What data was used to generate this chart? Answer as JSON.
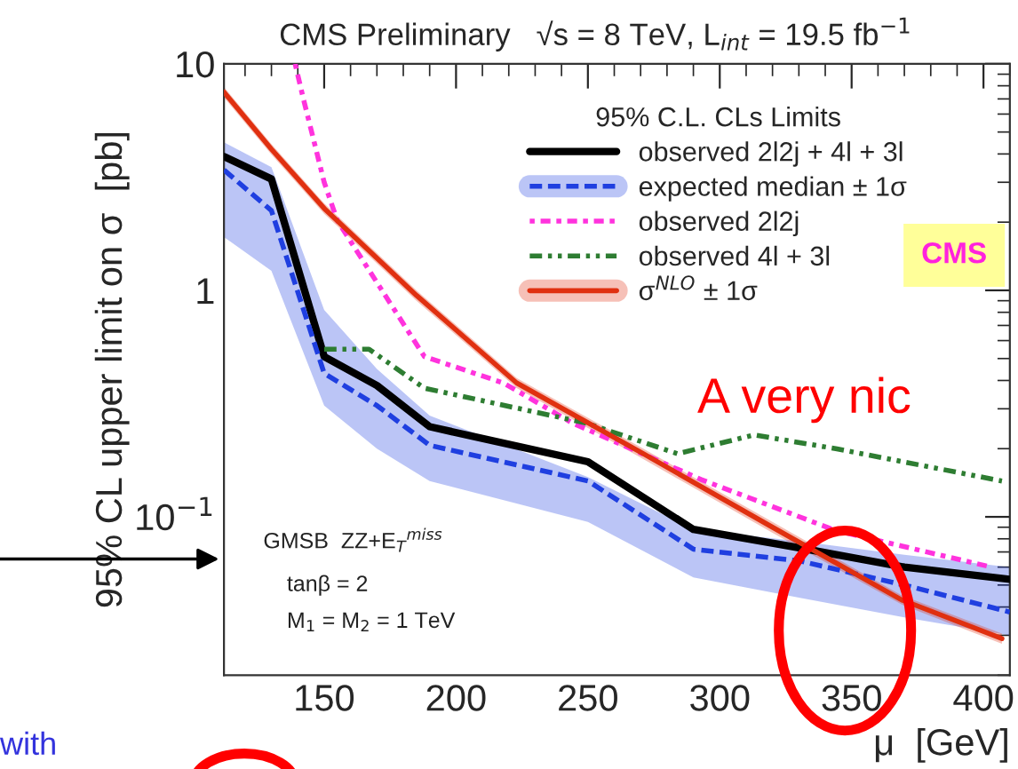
{
  "chart_data": {
    "type": "line",
    "title": "CMS Preliminary   √s = 8 TeV, L$_{int}$ = 19.5 fb$^{−1}$",
    "xlabel": "μ  [GeV]",
    "ylabel": "95% CL upper limit on σ  [pb]",
    "legend_title": "95% C.L. CLs Limits",
    "log": "y",
    "xlim": [
      112,
      410
    ],
    "ylim": [
      0.02,
      10
    ],
    "xticks": [
      150,
      200,
      250,
      300,
      350,
      400
    ],
    "yticks": [
      {
        "value": 0.1,
        "label": "10$^{−1}$"
      },
      1,
      10
    ],
    "grid": false,
    "legend": "top right",
    "marker": "none",
    "series": [
      {
        "name": "observed 2l2j + 4l + 3l",
        "color": "#000000",
        "line_style": "solid",
        "x": [
          112,
          130,
          150,
          170,
          190,
          250,
          290,
          330,
          370,
          410
        ],
        "values": [
          3.9,
          3.1,
          0.51,
          0.38,
          0.25,
          0.175,
          0.088,
          0.073,
          0.06,
          0.053
        ]
      },
      {
        "name": "expected median ± 1σ",
        "color": "#1f3fe0",
        "line_style": "dashed",
        "x": [
          112,
          130,
          150,
          170,
          190,
          250,
          290,
          330,
          370,
          410
        ],
        "values": [
          3.4,
          2.25,
          0.43,
          0.31,
          0.207,
          0.144,
          0.072,
          0.064,
          0.05,
          0.038
        ],
        "lower": [
          1.72,
          1.22,
          0.31,
          0.2,
          0.144,
          0.095,
          0.054,
          0.044,
          0.036,
          0.03
        ],
        "upper": [
          4.5,
          3.5,
          0.82,
          0.45,
          0.28,
          0.15,
          0.088,
          0.078,
          0.068,
          0.06
        ]
      },
      {
        "name": "observed 2l2j",
        "color": "#ff33dd",
        "line_style": "dotted",
        "x": [
          139,
          142,
          150,
          155,
          188,
          218,
          244,
          293,
          344,
          403
        ],
        "values": [
          10,
          7.1,
          3,
          2.03,
          0.51,
          0.39,
          0.26,
          0.146,
          0.087,
          0.06
        ]
      },
      {
        "name": "observed 4l + 3l",
        "color": "#2e7d32",
        "line_style": "dashdot",
        "x": [
          150,
          167,
          188,
          249,
          284,
          313,
          344,
          407
        ],
        "values": [
          0.55,
          0.55,
          0.37,
          0.26,
          0.19,
          0.23,
          0.2,
          0.144
        ]
      },
      {
        "name": "σ$^{NLO}$ ± 1σ",
        "color": "#e03010",
        "line_style": "solid",
        "x": [
          112,
          130,
          150,
          185,
          223,
          271,
          320,
          369,
          407
        ],
        "values": [
          7.5,
          4.2,
          2.3,
          0.95,
          0.39,
          0.19,
          0.09,
          0.043,
          0.029
        ],
        "lower": [
          7.1,
          3.98,
          2.18,
          0.9,
          0.37,
          0.18,
          0.085,
          0.041,
          0.0275
        ],
        "upper": [
          7.9,
          4.42,
          2.42,
          1.0,
          0.41,
          0.2,
          0.095,
          0.045,
          0.0305
        ]
      }
    ],
    "annotations": [
      "GMSB  ZZ+E$_{T}$$^{miss}$",
      "tanβ = 2",
      "M$_{1}$ = M$_{2}$ = 1 TeV",
      "A very nic",
      "CMS",
      "with"
    ]
  }
}
